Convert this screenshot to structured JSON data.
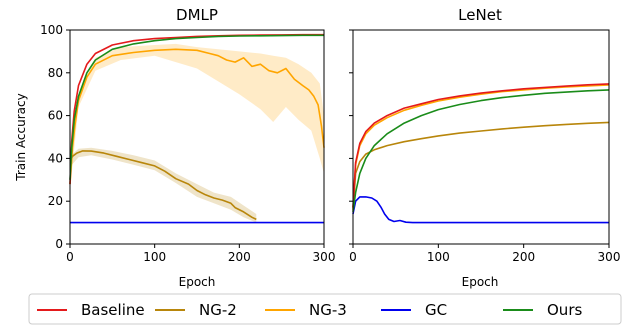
{
  "chart_data": [
    {
      "type": "line",
      "title": "DMLP",
      "xlabel": "Epoch",
      "ylabel": "Train Accuracy",
      "xlim": [
        0,
        300
      ],
      "ylim": [
        0,
        100
      ],
      "xticks": [
        "0",
        "100",
        "200",
        "300"
      ],
      "yticks": [
        "0",
        "20",
        "40",
        "60",
        "80",
        "100"
      ],
      "grid": false,
      "series": [
        {
          "name": "Baseline",
          "color": "#e41a1c",
          "x": [
            0,
            2,
            5,
            10,
            20,
            30,
            50,
            75,
            100,
            125,
            150,
            175,
            200,
            225,
            250,
            275,
            300
          ],
          "y": [
            28,
            48,
            62,
            74,
            84,
            89,
            93,
            95,
            96,
            96.5,
            97,
            97.3,
            97.5,
            97.6,
            97.7,
            97.8,
            97.8
          ],
          "band": null
        },
        {
          "name": "NG-2",
          "color": "#b8860b",
          "x": [
            0,
            3,
            8,
            15,
            25,
            40,
            55,
            70,
            85,
            100,
            112,
            125,
            140,
            150,
            160,
            170,
            180,
            190,
            195,
            205,
            215,
            220
          ],
          "y": [
            39,
            41,
            42.5,
            43.5,
            43.4,
            42.5,
            41,
            39.5,
            38,
            36.5,
            34,
            30.5,
            28,
            25,
            23,
            21.5,
            20.5,
            19,
            17,
            15,
            12.5,
            11.5
          ],
          "band": [
            [
              0,
              36,
              41
            ],
            [
              10,
              40.5,
              44.5
            ],
            [
              25,
              41.5,
              45
            ],
            [
              50,
              39.5,
              43.5
            ],
            [
              75,
              37,
              41.5
            ],
            [
              100,
              34.5,
              39
            ],
            [
              125,
              28.5,
              33
            ],
            [
              150,
              22,
              28
            ],
            [
              170,
              19,
              24
            ],
            [
              190,
              16,
              22
            ],
            [
              205,
              12.5,
              18
            ],
            [
              220,
              10,
              14
            ]
          ]
        },
        {
          "name": "NG-3",
          "color": "#ffa500",
          "x": [
            0,
            3,
            6,
            10,
            20,
            30,
            50,
            75,
            100,
            125,
            150,
            165,
            175,
            185,
            195,
            205,
            215,
            225,
            235,
            245,
            255,
            265,
            275,
            282,
            288,
            293,
            297,
            300
          ],
          "y": [
            28,
            45,
            56,
            67,
            78,
            84,
            88,
            89.5,
            90.5,
            91,
            90.5,
            89,
            88,
            86,
            85,
            87,
            83,
            84,
            81,
            80,
            82,
            77,
            74,
            72,
            69,
            65,
            55,
            45
          ],
          "band": [
            [
              0,
              25,
              31
            ],
            [
              10,
              64,
              70
            ],
            [
              30,
              81,
              87
            ],
            [
              60,
              86,
              92
            ],
            [
              100,
              88,
              93
            ],
            [
              125,
              85,
              93.5
            ],
            [
              150,
              82,
              92
            ],
            [
              175,
              76,
              91
            ],
            [
              200,
              70,
              90
            ],
            [
              225,
              63,
              89
            ],
            [
              240,
              57,
              88
            ],
            [
              255,
              64,
              87
            ],
            [
              270,
              58,
              84
            ],
            [
              285,
              53,
              80
            ],
            [
              295,
              40,
              75
            ],
            [
              300,
              33,
              60
            ]
          ]
        },
        {
          "name": "GC",
          "color": "#0000ee",
          "x": [
            0,
            50,
            100,
            150,
            200,
            250,
            300
          ],
          "y": [
            10,
            10,
            10,
            10,
            10,
            10,
            10
          ],
          "band": null
        },
        {
          "name": "Ours",
          "color": "#1a8c1a",
          "x": [
            0,
            2,
            5,
            10,
            20,
            30,
            50,
            75,
            100,
            125,
            150,
            175,
            200,
            225,
            250,
            275,
            300
          ],
          "y": [
            30,
            45,
            58,
            69,
            80,
            86,
            91,
            93.5,
            95,
            96,
            96.5,
            97,
            97.2,
            97.3,
            97.4,
            97.5,
            97.5
          ],
          "band": null
        }
      ]
    },
    {
      "type": "line",
      "title": "LeNet",
      "xlabel": "Epoch",
      "ylabel": "",
      "xlim": [
        0,
        300
      ],
      "ylim": [
        0,
        100
      ],
      "xticks": [
        "0",
        "100",
        "200",
        "300"
      ],
      "yticks": [],
      "grid": false,
      "series": [
        {
          "name": "Baseline",
          "color": "#e41a1c",
          "x": [
            0,
            3,
            8,
            15,
            25,
            40,
            60,
            80,
            100,
            125,
            150,
            175,
            200,
            225,
            250,
            275,
            300
          ],
          "y": [
            17,
            38,
            47,
            52.5,
            56.5,
            60,
            63.5,
            65.5,
            67.5,
            69.2,
            70.5,
            71.6,
            72.5,
            73.2,
            73.8,
            74.4,
            74.8
          ],
          "band": null
        },
        {
          "name": "NG-2",
          "color": "#b8860b",
          "x": [
            0,
            3,
            8,
            15,
            25,
            40,
            60,
            80,
            100,
            125,
            150,
            175,
            200,
            225,
            250,
            275,
            300
          ],
          "y": [
            16,
            33,
            38.5,
            42,
            44,
            46,
            47.8,
            49.2,
            50.5,
            51.8,
            52.8,
            53.8,
            54.6,
            55.3,
            55.9,
            56.4,
            56.8
          ],
          "band": null
        },
        {
          "name": "NG-3",
          "color": "#ffa500",
          "x": [
            0,
            3,
            8,
            15,
            25,
            40,
            60,
            80,
            100,
            125,
            150,
            175,
            200,
            225,
            250,
            275,
            300
          ],
          "y": [
            17,
            37,
            46,
            51.5,
            55.5,
            59,
            62.5,
            64.8,
            66.8,
            68.6,
            70,
            71.2,
            72,
            72.8,
            73.4,
            73.9,
            74.3
          ],
          "band": null
        },
        {
          "name": "GC",
          "color": "#0000ee",
          "x": [
            0,
            3,
            8,
            15,
            22,
            28,
            33,
            37,
            42,
            48,
            55,
            62,
            70,
            100,
            150,
            200,
            250,
            300
          ],
          "y": [
            14,
            20,
            22,
            22,
            21.5,
            20,
            17,
            14,
            11.5,
            10.5,
            11,
            10.2,
            10,
            10,
            10,
            10,
            10,
            10
          ],
          "band": null
        },
        {
          "name": "Ours",
          "color": "#1a8c1a",
          "x": [
            0,
            3,
            8,
            15,
            25,
            40,
            60,
            80,
            100,
            125,
            150,
            175,
            200,
            225,
            250,
            275,
            300
          ],
          "y": [
            15,
            24,
            33,
            40,
            46,
            51.5,
            56.5,
            60,
            62.8,
            65.2,
            67,
            68.4,
            69.5,
            70.4,
            71,
            71.6,
            72
          ],
          "band": null
        }
      ]
    }
  ],
  "legend": {
    "placement": "bottom",
    "entries": [
      {
        "label": "Baseline",
        "color": "#e41a1c"
      },
      {
        "label": "NG-2",
        "color": "#b8860b"
      },
      {
        "label": "NG-3",
        "color": "#ffa500"
      },
      {
        "label": "GC",
        "color": "#0000ee"
      },
      {
        "label": "Ours",
        "color": "#1a8c1a"
      }
    ]
  }
}
